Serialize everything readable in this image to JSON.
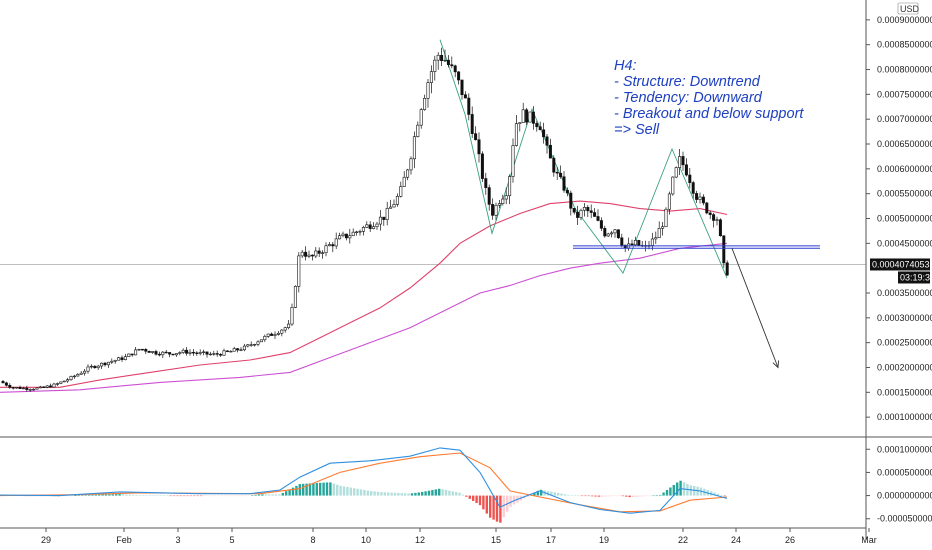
{
  "chart_data": [
    {
      "type": "candlestick",
      "currency_label": "USD",
      "y_ticks": [
        "0.00090000000",
        "0.00085000000",
        "0.00080000000",
        "0.00075000000",
        "0.00070000000",
        "0.00065000000",
        "0.00060000000",
        "0.00055000000",
        "0.00050000000",
        "0.00045000000",
        "0.00035000000",
        "0.00030000000",
        "0.00025000000",
        "0.00020000000",
        "0.00015000000",
        "0.00010000000"
      ],
      "ylim": [
        6e-05,
        0.00094
      ],
      "x_ticks": [
        "29",
        "Feb",
        "3",
        "5",
        "8",
        "10",
        "12",
        "15",
        "17",
        "19",
        "22",
        "24",
        "26",
        "Mar"
      ],
      "current_price": "0.00040740531",
      "countdown": "03:19:38",
      "price_path": [
        [
          0,
          0.000172
        ],
        [
          12,
          0.00016
        ],
        [
          25,
          0.000158
        ],
        [
          40,
          0.000158
        ],
        [
          55,
          0.000165
        ],
        [
          70,
          0.000178
        ],
        [
          90,
          0.0002
        ],
        [
          110,
          0.000212
        ],
        [
          125,
          0.00022
        ],
        [
          140,
          0.000238
        ],
        [
          155,
          0.00023
        ],
        [
          170,
          0.000228
        ],
        [
          185,
          0.000232
        ],
        [
          200,
          0.000228
        ],
        [
          215,
          0.000226
        ],
        [
          230,
          0.000232
        ],
        [
          245,
          0.00024
        ],
        [
          260,
          0.000256
        ],
        [
          275,
          0.00027
        ],
        [
          290,
          0.000285
        ],
        [
          300,
          0.00044
        ],
        [
          310,
          0.00042
        ],
        [
          325,
          0.00044
        ],
        [
          340,
          0.00046
        ],
        [
          355,
          0.000472
        ],
        [
          370,
          0.000488
        ],
        [
          385,
          0.000505
        ],
        [
          400,
          0.00055
        ],
        [
          410,
          0.00062
        ],
        [
          420,
          0.00072
        ],
        [
          430,
          0.00079
        ],
        [
          438,
          0.00083
        ],
        [
          445,
          0.00082
        ],
        [
          455,
          0.00079
        ],
        [
          465,
          0.00074
        ],
        [
          475,
          0.00066
        ],
        [
          485,
          0.00056
        ],
        [
          492,
          0.00051
        ],
        [
          500,
          0.00054
        ],
        [
          508,
          0.00056
        ],
        [
          515,
          0.00069
        ],
        [
          523,
          0.00071
        ],
        [
          532,
          0.0007
        ],
        [
          540,
          0.00069
        ],
        [
          548,
          0.00063
        ],
        [
          556,
          0.00059
        ],
        [
          565,
          0.00056
        ],
        [
          575,
          0.0005
        ],
        [
          585,
          0.00052
        ],
        [
          595,
          0.0005
        ],
        [
          605,
          0.00047
        ],
        [
          615,
          0.00048
        ],
        [
          625,
          0.00044
        ],
        [
          635,
          0.00045
        ],
        [
          645,
          0.00044
        ],
        [
          655,
          0.00046
        ],
        [
          665,
          0.0005
        ],
        [
          672,
          0.00057
        ],
        [
          680,
          0.00062
        ],
        [
          688,
          0.00059
        ],
        [
          695,
          0.00055
        ],
        [
          702,
          0.00053
        ],
        [
          710,
          0.00051
        ],
        [
          717,
          0.0005
        ],
        [
          722,
          0.00044
        ],
        [
          725,
          0.00038
        ],
        [
          730,
          0.000407
        ]
      ],
      "ema_fast": [
        [
          0,
          0.00016
        ],
        [
          60,
          0.00016
        ],
        [
          100,
          0.000175
        ],
        [
          150,
          0.00019
        ],
        [
          200,
          0.000205
        ],
        [
          250,
          0.000215
        ],
        [
          290,
          0.00023
        ],
        [
          320,
          0.00026
        ],
        [
          350,
          0.00029
        ],
        [
          380,
          0.00032
        ],
        [
          410,
          0.00036
        ],
        [
          440,
          0.00041
        ],
        [
          460,
          0.00045
        ],
        [
          490,
          0.000485
        ],
        [
          520,
          0.00051
        ],
        [
          550,
          0.00053
        ],
        [
          580,
          0.000535
        ],
        [
          610,
          0.00053
        ],
        [
          640,
          0.00052
        ],
        [
          670,
          0.000515
        ],
        [
          700,
          0.00052
        ],
        [
          727,
          0.000508
        ]
      ],
      "ema_slow": [
        [
          0,
          0.00015
        ],
        [
          80,
          0.000155
        ],
        [
          160,
          0.00017
        ],
        [
          240,
          0.00018
        ],
        [
          290,
          0.00019
        ],
        [
          330,
          0.00022
        ],
        [
          370,
          0.00025
        ],
        [
          410,
          0.00028
        ],
        [
          450,
          0.00032
        ],
        [
          480,
          0.00035
        ],
        [
          510,
          0.000365
        ],
        [
          540,
          0.000385
        ],
        [
          570,
          0.0004
        ],
        [
          600,
          0.00041
        ],
        [
          640,
          0.00042
        ],
        [
          680,
          0.00044
        ],
        [
          727,
          0.00045
        ]
      ],
      "pattern_lines": [
        [
          [
            440,
            0.00086
          ],
          [
            465,
            0.00071
          ],
          [
            492,
            0.00047
          ],
          [
            532,
            0.00072
          ],
          [
            575,
            0.00052
          ],
          [
            623,
            0.00039
          ],
          [
            672,
            0.00064
          ],
          [
            727,
            0.00038
          ]
        ]
      ],
      "support_band": [
        0.000445,
        0.00044
      ],
      "support_x": [
        573,
        820
      ],
      "forecast_arrow": [
        [
          732,
          0.00044
        ],
        [
          778,
          0.0002
        ]
      ],
      "annotation": [
        "H4:",
        "- Structure: Downtrend",
        "- Tendency: Downward",
        "- Breakout and below support",
        "=> Sell"
      ]
    },
    {
      "type": "macd",
      "y_ticks": [
        "0.00010000000",
        "0.00005000000",
        "0.00000000000",
        "-0.00005000000"
      ],
      "ylim": [
        -7e-05,
        0.00012
      ],
      "macd_line": [
        [
          0,
          1e-06
        ],
        [
          60,
          0.0
        ],
        [
          120,
          8e-06
        ],
        [
          160,
          6e-06
        ],
        [
          200,
          4e-06
        ],
        [
          250,
          4e-06
        ],
        [
          280,
          1.2e-05
        ],
        [
          300,
          4e-05
        ],
        [
          330,
          7e-05
        ],
        [
          370,
          7.5e-05
        ],
        [
          410,
          8.5e-05
        ],
        [
          440,
          0.000103
        ],
        [
          460,
          9.8e-05
        ],
        [
          480,
          5e-05
        ],
        [
          500,
          -2.5e-05
        ],
        [
          515,
          -1e-05
        ],
        [
          540,
          1e-05
        ],
        [
          570,
          -1.5e-05
        ],
        [
          600,
          -3e-05
        ],
        [
          630,
          -3.8e-05
        ],
        [
          660,
          -3.2e-05
        ],
        [
          680,
          1.5e-05
        ],
        [
          700,
          1e-05
        ],
        [
          727,
          -6e-06
        ]
      ],
      "signal_line": [
        [
          0,
          0.0
        ],
        [
          80,
          2e-06
        ],
        [
          140,
          6e-06
        ],
        [
          200,
          5e-06
        ],
        [
          260,
          4e-06
        ],
        [
          300,
          1.5e-05
        ],
        [
          340,
          5e-05
        ],
        [
          380,
          7e-05
        ],
        [
          420,
          8.4e-05
        ],
        [
          460,
          9.2e-05
        ],
        [
          490,
          6e-05
        ],
        [
          510,
          1e-05
        ],
        [
          540,
          -3e-06
        ],
        [
          580,
          -2e-05
        ],
        [
          620,
          -3.5e-05
        ],
        [
          660,
          -3.3e-05
        ],
        [
          690,
          -1e-05
        ],
        [
          727,
          -3e-06
        ]
      ]
    }
  ]
}
